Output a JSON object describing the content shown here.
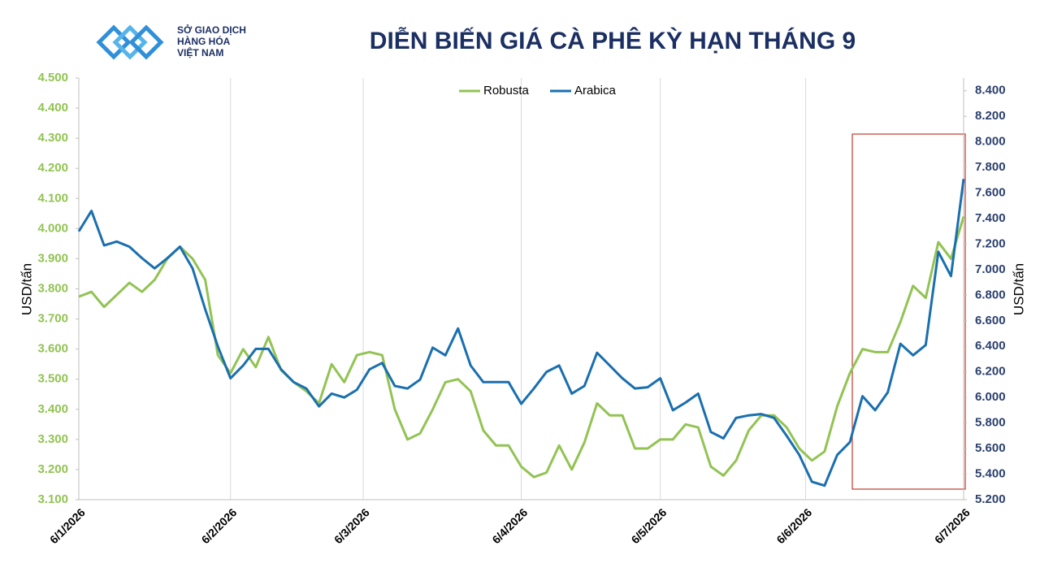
{
  "logo": {
    "lines": [
      "SỞ GIAO DỊCH",
      "HÀNG HÓA",
      "VIỆT NAM"
    ]
  },
  "chart_data": {
    "type": "line",
    "title": "DIỄN BIẾN GIÁ CÀ PHÊ KỲ HẠN THÁNG 9",
    "y_label": "USD/tấn",
    "y2_label": "USD/tấn",
    "x": [
      0,
      2,
      4,
      6,
      8,
      10,
      12,
      14,
      16,
      18,
      20,
      22,
      24,
      26,
      28,
      30,
      32,
      34,
      36,
      38,
      40,
      42,
      44,
      46,
      48,
      50,
      52,
      54,
      56,
      58,
      60,
      62,
      64,
      66,
      68,
      70,
      72,
      74,
      76,
      78,
      80,
      82,
      84,
      86,
      88,
      90,
      92,
      94,
      96,
      98,
      100,
      102,
      104,
      106,
      108,
      110,
      112,
      114,
      116,
      118,
      120,
      122,
      124,
      126,
      128,
      130,
      132,
      134,
      136,
      138,
      140
    ],
    "series": [
      {
        "name": "Robusta",
        "color": "#92c353",
        "axis": "y",
        "values": [
          3.774,
          3.79,
          3.74,
          3.78,
          3.82,
          3.79,
          3.83,
          3.9,
          3.94,
          3.9,
          3.83,
          3.58,
          3.52,
          3.6,
          3.54,
          3.64,
          3.53,
          3.49,
          3.46,
          3.42,
          3.55,
          3.49,
          3.58,
          3.59,
          3.58,
          3.4,
          3.3,
          3.32,
          3.4,
          3.49,
          3.5,
          3.46,
          3.33,
          3.28,
          3.28,
          3.21,
          3.175,
          3.19,
          3.28,
          3.2,
          3.29,
          3.42,
          3.38,
          3.38,
          3.27,
          3.27,
          3.3,
          3.3,
          3.35,
          3.34,
          3.21,
          3.18,
          3.23,
          3.33,
          3.38,
          3.38,
          3.34,
          3.27,
          3.23,
          3.26,
          3.41,
          3.52,
          3.6,
          3.59,
          3.59,
          3.69,
          3.81,
          3.77,
          3.955,
          3.9,
          4.04
        ]
      },
      {
        "name": "Arabica",
        "color": "#1a6faf",
        "axis": "y2",
        "values": [
          7.3,
          7.46,
          7.19,
          7.22,
          7.18,
          7.09,
          7.01,
          7.09,
          7.18,
          7.01,
          6.69,
          6.4,
          6.15,
          6.25,
          6.38,
          6.38,
          6.22,
          6.12,
          6.07,
          5.93,
          6.03,
          6.0,
          6.06,
          6.22,
          6.27,
          6.09,
          6.07,
          6.14,
          6.39,
          6.33,
          6.54,
          6.25,
          6.12,
          6.12,
          6.12,
          5.95,
          6.07,
          6.2,
          6.25,
          6.03,
          6.09,
          6.35,
          6.25,
          6.15,
          6.07,
          6.08,
          6.15,
          5.9,
          5.96,
          6.03,
          5.73,
          5.68,
          5.84,
          5.86,
          5.87,
          5.84,
          5.7,
          5.55,
          5.34,
          5.31,
          5.55,
          5.65,
          6.01,
          5.9,
          6.04,
          6.42,
          6.33,
          6.41,
          7.14,
          6.95,
          7.71
        ]
      }
    ],
    "xlim": [
      0,
      140
    ],
    "xticks": [
      {
        "value": 0,
        "label": "6/1/2026"
      },
      {
        "value": 24,
        "label": "6/2/2026"
      },
      {
        "value": 45,
        "label": "6/3/2026"
      },
      {
        "value": 70,
        "label": "6/4/2026"
      },
      {
        "value": 92,
        "label": "6/5/2026"
      },
      {
        "value": 115,
        "label": "6/6/2026"
      },
      {
        "value": 140,
        "label": "6/7/2026"
      }
    ],
    "ylim": [
      3.1,
      4.5
    ],
    "yticks": [
      {
        "value": 3.1,
        "label": "3.100"
      },
      {
        "value": 3.2,
        "label": "3.200"
      },
      {
        "value": 3.3,
        "label": "3.300"
      },
      {
        "value": 3.4,
        "label": "3.400"
      },
      {
        "value": 3.5,
        "label": "3.500"
      },
      {
        "value": 3.6,
        "label": "3.600"
      },
      {
        "value": 3.7,
        "label": "3.700"
      },
      {
        "value": 3.8,
        "label": "3.800"
      },
      {
        "value": 3.9,
        "label": "3.900"
      },
      {
        "value": 4.0,
        "label": "4.000"
      },
      {
        "value": 4.1,
        "label": "4.100"
      },
      {
        "value": 4.2,
        "label": "4.200"
      },
      {
        "value": 4.3,
        "label": "4.300"
      },
      {
        "value": 4.4,
        "label": "4.400"
      },
      {
        "value": 4.5,
        "label": "4.500"
      }
    ],
    "y2lim": [
      5.2,
      8.5
    ],
    "y2ticks": [
      {
        "value": 5.2,
        "label": "5.200"
      },
      {
        "value": 5.4,
        "label": "5.400"
      },
      {
        "value": 5.6,
        "label": "5.600"
      },
      {
        "value": 5.8,
        "label": "5.800"
      },
      {
        "value": 6.0,
        "label": "6.000"
      },
      {
        "value": 6.2,
        "label": "6.200"
      },
      {
        "value": 6.4,
        "label": "6.400"
      },
      {
        "value": 6.6,
        "label": "6.600"
      },
      {
        "value": 6.8,
        "label": "6.800"
      },
      {
        "value": 7.0,
        "label": "7.000"
      },
      {
        "value": 7.2,
        "label": "7.200"
      },
      {
        "value": 7.4,
        "label": "7.400"
      },
      {
        "value": 7.6,
        "label": "7.600"
      },
      {
        "value": 7.8,
        "label": "7.800"
      },
      {
        "value": 8.0,
        "label": "8.000"
      },
      {
        "value": 8.2,
        "label": "8.200"
      },
      {
        "value": 8.4,
        "label": "8.400"
      }
    ],
    "grid": "x",
    "legend": "top"
  }
}
